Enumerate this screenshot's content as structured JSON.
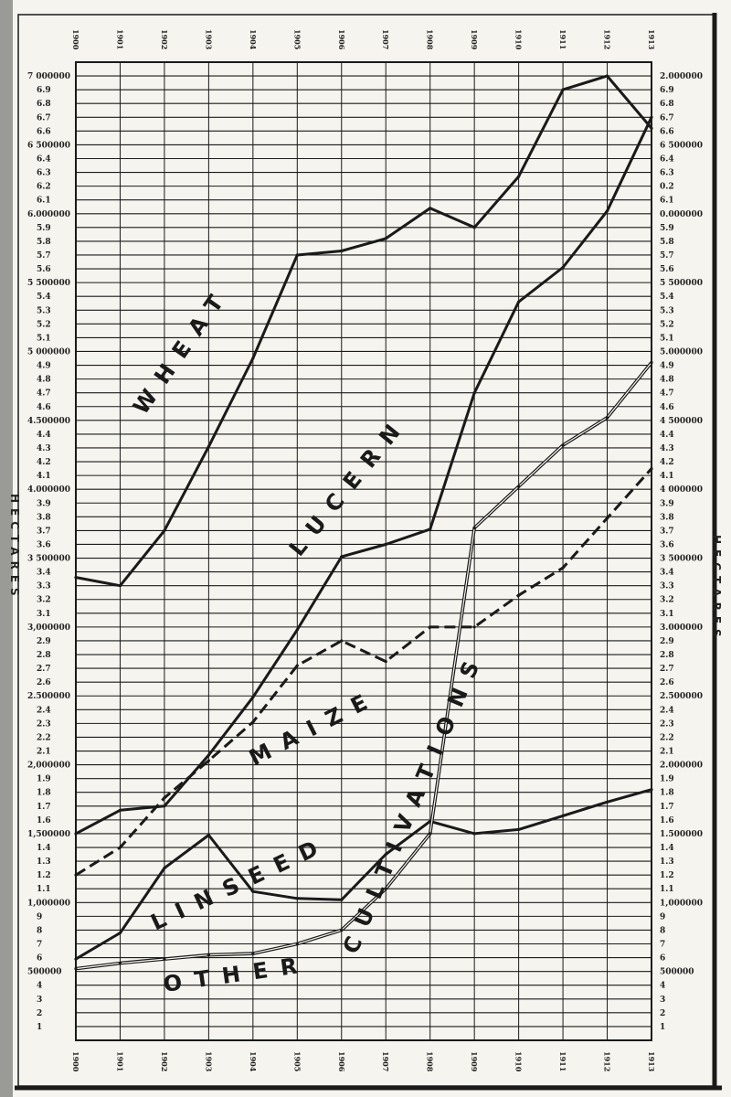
{
  "chart_data": {
    "type": "line",
    "title": "",
    "xlabel": "",
    "ylabel": "HECTARES",
    "ylabel_right": "HECTARES",
    "x": [
      1900,
      1901,
      1902,
      1903,
      1904,
      1905,
      1906,
      1907,
      1908,
      1909,
      1910,
      1911,
      1912,
      1913
    ],
    "x_tick_labels_top": [
      "1900",
      "1901",
      "1902",
      "1903",
      "1904",
      "1905",
      "1906",
      "1907",
      "1908",
      "1909",
      "1910",
      "1911",
      "1912",
      "1913"
    ],
    "x_tick_labels_bottom": [
      "1900",
      "1901",
      "1902",
      "1903",
      "1904",
      "1905",
      "1906",
      "1907",
      "1908",
      "1909",
      "1910",
      "1911",
      "1912",
      "1913"
    ],
    "ylim": [
      0,
      7100000
    ],
    "grid": true,
    "legend": "none (series labelled directly on chart)",
    "y_tick_labels_left": [
      "1",
      "2",
      "3",
      "4",
      "500000",
      "6",
      "7",
      "8",
      "9",
      "1,000000",
      "1.1",
      "1.2",
      "1.3",
      "1.4",
      "1,500000",
      "1.6",
      "1.7",
      "1.8",
      "1.9",
      "2,000000",
      "2.1",
      "2.2",
      "2.3",
      "2.4",
      "2.500000",
      "2.6",
      "2.7",
      "2.8",
      "2.9",
      "3,000000",
      "3.1",
      "3.2",
      "3.3",
      "3.4",
      "3 500000",
      "3.6",
      "3.7",
      "3.8",
      "3.9",
      "4.000000",
      "4.1",
      "4.2",
      "4.3",
      "4.4",
      "4.500000",
      "4.6",
      "4.7",
      "4.8",
      "4.9",
      "5 000000",
      "5.1",
      "5.2",
      "5.3",
      "5.4",
      "5 500000",
      "5.6",
      "5.7",
      "5.8",
      "5.9",
      "6.000000",
      "6.1",
      "6.2",
      "6.3",
      "6.4",
      "6 500000",
      "6.6",
      "6.7",
      "6.8",
      "6.9",
      "7 000000"
    ],
    "y_tick_labels_right": [
      "1",
      "2",
      "3",
      "4",
      "500000",
      "6",
      "7",
      "8",
      "9",
      "1,000000",
      "1.1",
      "1.2",
      "1.3",
      "1.4",
      "1.500000",
      "1.6",
      "1.7",
      "1.8",
      "1.9",
      "2.000000",
      "2.1",
      "2.2",
      "2.3",
      "2.4",
      "2.500000",
      "2.6",
      "2.7",
      "2.8",
      "2.9",
      "3.000000",
      "3.1",
      "3.2",
      "3.3",
      "3.4",
      "3 500000",
      "3.6",
      "3.7",
      "3.8",
      "3.9",
      "4 000000",
      "4.1",
      "4.2",
      "4.3",
      "4.4",
      "4 500000",
      "4.6",
      "4.7",
      "4.8",
      "4.9",
      "5.000000",
      "5.1",
      "5.2",
      "5.3",
      "5.4",
      "5 500000",
      "5.6",
      "5.7",
      "5.8",
      "5.9",
      "0.000000",
      "6.1",
      "0.2",
      "6.3",
      "6.4",
      "6 500000",
      "6.6",
      "6.7",
      "6.8",
      "6.9",
      "2.000000"
    ],
    "series": [
      {
        "name": "WHEAT",
        "style": "solid",
        "values": [
          3360000,
          3300000,
          3700000,
          4310000,
          4950000,
          5700000,
          5730000,
          5820000,
          6040000,
          5900000,
          6270000,
          6900000,
          7000000,
          6620000
        ]
      },
      {
        "name": "LUCERN",
        "style": "solid",
        "values": [
          1500000,
          1670000,
          1700000,
          2070000,
          2490000,
          2980000,
          3510000,
          3600000,
          3710000,
          4700000,
          5360000,
          5610000,
          6020000,
          6700000
        ]
      },
      {
        "name": "MAIZE",
        "style": "dashed",
        "values": [
          1200000,
          1400000,
          1760000,
          2030000,
          2310000,
          2720000,
          2900000,
          2750000,
          3000000,
          3000000,
          3230000,
          3430000,
          3790000,
          4150000
        ]
      },
      {
        "name": "LINSEED",
        "style": "solid",
        "values": [
          590000,
          780000,
          1250000,
          1490000,
          1080000,
          1030000,
          1020000,
          1350000,
          1590000,
          1500000,
          1530000,
          1630000,
          1730000,
          1820000
        ]
      },
      {
        "name": "OTHER CULTIVATIONS",
        "style": "double",
        "values": [
          520000,
          560000,
          590000,
          620000,
          630000,
          700000,
          800000,
          1100000,
          1500000,
          3720000,
          4020000,
          4320000,
          4520000,
          4920000
        ]
      }
    ],
    "series_labels": {
      "wheat": "WHEAT",
      "lucern": "LUCERN",
      "maize": "MAIZE",
      "linseed": "LINSEED",
      "other": "OTHER",
      "cultivations": "CULTIVATIONS"
    },
    "colors": {
      "ink": "#1a1a1a",
      "paper": "#f6f4ee"
    }
  }
}
